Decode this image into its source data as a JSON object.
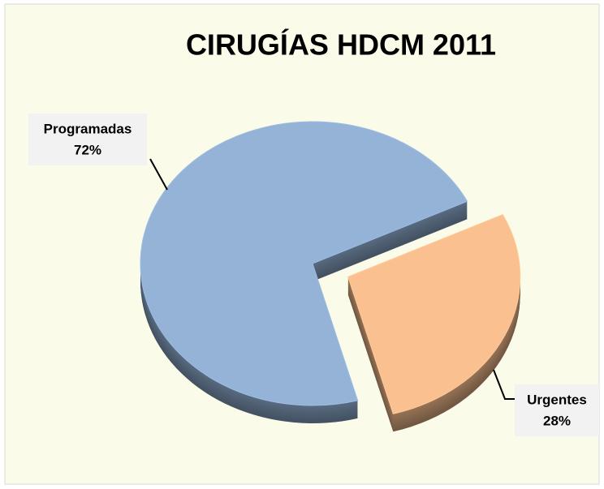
{
  "chart_data": {
    "type": "pie",
    "title": "CIRUGÍAS HDCM 2011",
    "categories": [
      "Programadas",
      "Urgentes"
    ],
    "values": [
      72,
      28
    ],
    "value_labels": [
      "72%",
      "28%"
    ],
    "colors": [
      "#95b3d7",
      "#fac090"
    ],
    "explode": [
      false,
      true
    ]
  }
}
